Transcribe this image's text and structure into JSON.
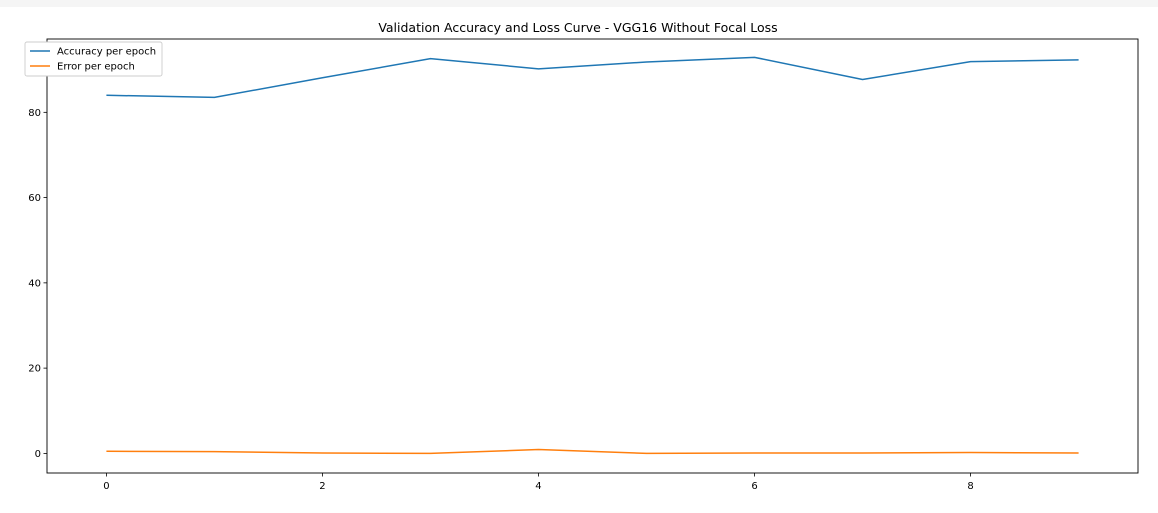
{
  "chart_data": {
    "type": "line",
    "title": "Validation Accuracy and Loss Curve - VGG16 Without Focal Loss",
    "xlabel": "",
    "ylabel": "",
    "x": [
      0,
      1,
      2,
      3,
      4,
      5,
      6,
      7,
      8,
      9
    ],
    "xticks": [
      0,
      2,
      4,
      6,
      8
    ],
    "yticks": [
      0,
      20,
      40,
      60,
      80
    ],
    "xlim": [
      -0.55,
      9.55
    ],
    "ylim": [
      -4.6,
      97.2
    ],
    "grid": false,
    "legend_position": "top-left",
    "series": [
      {
        "name": "Accuracy per epoch",
        "color": "#1f77b4",
        "values": [
          84.0,
          83.5,
          88.1,
          92.6,
          90.2,
          91.8,
          92.9,
          87.7,
          91.9,
          92.3
        ]
      },
      {
        "name": "Error per epoch",
        "color": "#ff7f0e",
        "values": [
          0.5,
          0.4,
          0.1,
          0.0,
          0.9,
          0.0,
          0.1,
          0.1,
          0.2,
          0.1
        ]
      }
    ]
  }
}
